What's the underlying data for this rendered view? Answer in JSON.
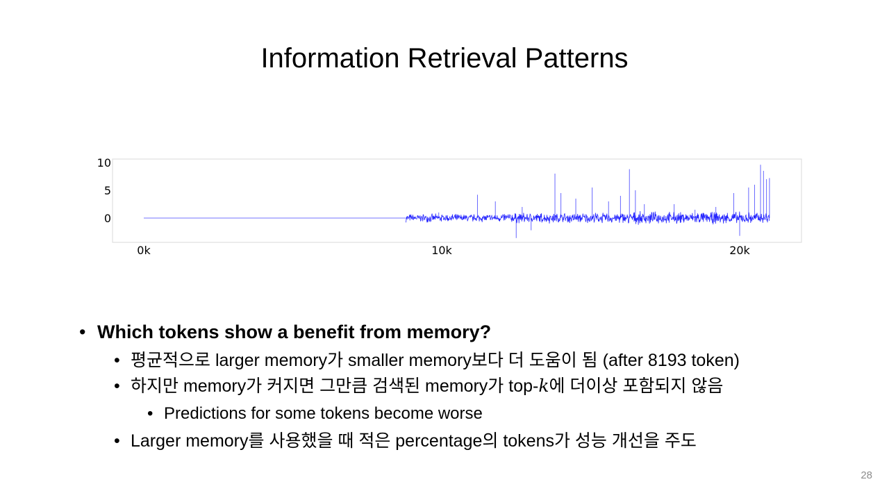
{
  "slide": {
    "title": "Information Retrieval Patterns",
    "page_number": "28"
  },
  "bullets": {
    "b1": "Which tokens show a benefit from memory?",
    "b2": "평균적으로 larger memory가 smaller memory보다 더 도움이 됨 (after 8193 token)",
    "b3_pre": "하지만 memory가 커지면 그만큼 검색된 memory가 top-",
    "b3_k": "k",
    "b3_post": "에 더이상 포함되지 않음",
    "b4": "Predictions for some tokens become worse",
    "b5": "Larger memory를 사용했을 때 적은 percentage의 tokens가 성능 개선을 주도",
    "bullet_glyph": "•"
  },
  "chart_data": {
    "type": "line",
    "title": "",
    "xlabel": "",
    "ylabel": "",
    "xlim": [
      0,
      22500
    ],
    "ylim": [
      -4,
      10
    ],
    "xticks": [
      0,
      10000,
      20000
    ],
    "xtick_labels": [
      "0k",
      "10k",
      "20k"
    ],
    "yticks": [
      0,
      5,
      10
    ],
    "ytick_labels": [
      "0",
      "5",
      "10"
    ],
    "grid": false,
    "line_color": "#0000ff",
    "flat_segment": [
      [
        0,
        0
      ],
      [
        8800,
        0
      ]
    ],
    "noise_band": {
      "x_start": 8800,
      "x_end": 21000,
      "typical_amplitude": 0.6
    },
    "spikes": [
      [
        9900,
        1.0
      ],
      [
        11200,
        4.2
      ],
      [
        11800,
        3.0
      ],
      [
        12500,
        -3.6
      ],
      [
        12700,
        2.0
      ],
      [
        13000,
        -2.2
      ],
      [
        13800,
        8.0
      ],
      [
        14000,
        4.5
      ],
      [
        14500,
        3.5
      ],
      [
        15050,
        5.5
      ],
      [
        15600,
        3.0
      ],
      [
        16000,
        4.0
      ],
      [
        16300,
        8.8
      ],
      [
        16500,
        5.0
      ],
      [
        16800,
        2.5
      ],
      [
        17800,
        2.5
      ],
      [
        18500,
        1.5
      ],
      [
        19200,
        2.0
      ],
      [
        19800,
        4.5
      ],
      [
        20000,
        -3.2
      ],
      [
        20300,
        5.5
      ],
      [
        20500,
        6.0
      ],
      [
        20700,
        9.6
      ],
      [
        20800,
        8.5
      ],
      [
        20900,
        7.0
      ],
      [
        21000,
        7.2
      ]
    ]
  }
}
